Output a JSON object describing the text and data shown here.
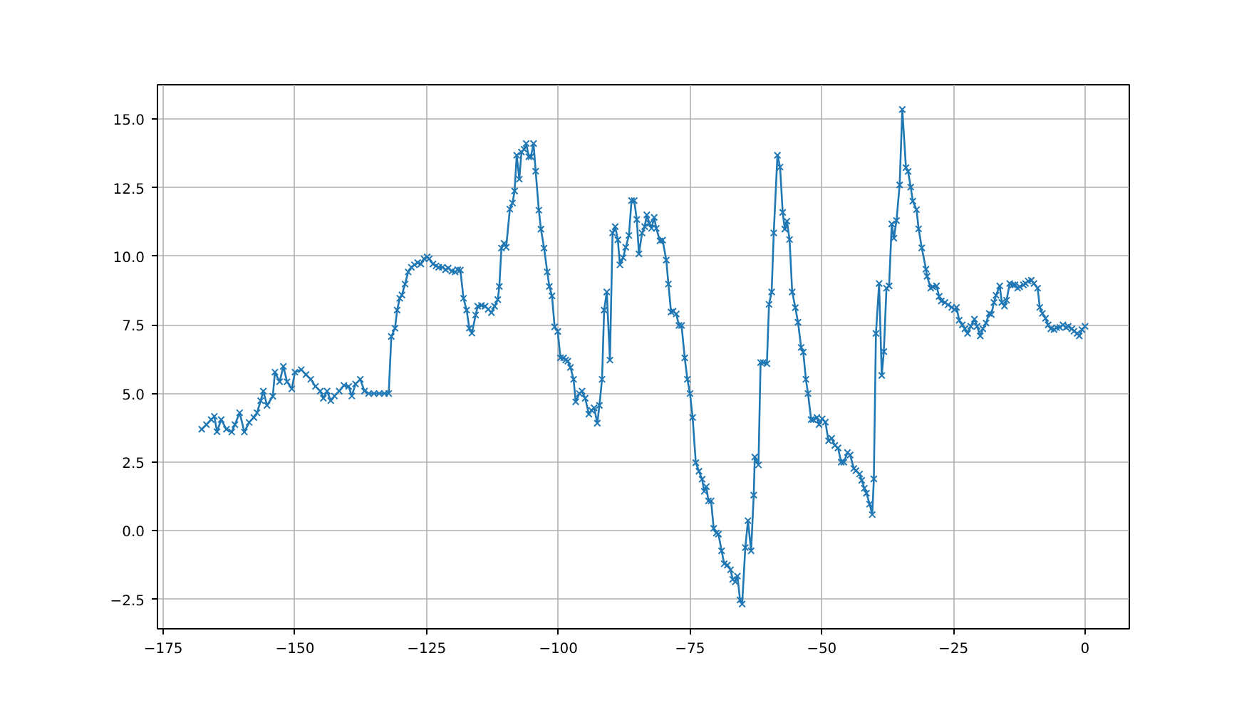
{
  "chart_data": {
    "type": "line",
    "color": "#1f77b4",
    "marker": "cross",
    "grid": true,
    "xlim": [
      -176.1,
      8.4
    ],
    "ylim": [
      -3.57,
      16.25
    ],
    "xticks": [
      {
        "value": -175,
        "label": "−175"
      },
      {
        "value": -150,
        "label": "−150"
      },
      {
        "value": -125,
        "label": "−125"
      },
      {
        "value": -100,
        "label": "−100"
      },
      {
        "value": -75,
        "label": "−75"
      },
      {
        "value": -50,
        "label": "−50"
      },
      {
        "value": -25,
        "label": "−25"
      },
      0
    ],
    "yticks": [
      {
        "value": -2.5,
        "label": "−2.5"
      },
      {
        "value": 0,
        "label": "0.0"
      },
      2.5,
      {
        "value": 5,
        "label": "5.0"
      },
      7.5,
      {
        "value": 10,
        "label": "10.0"
      },
      12.5,
      {
        "value": 15,
        "label": "15.0"
      }
    ],
    "x": [
      -167.7,
      -166.8,
      -165.9,
      -165.3,
      -164.8,
      -164.0,
      -163.0,
      -162.0,
      -161.4,
      -160.5,
      -159.6,
      -158.7,
      -157.8,
      -157.2,
      -156.5,
      -156.0,
      -155.3,
      -154.2,
      -153.8,
      -152.9,
      -152.2,
      -151.5,
      -150.6,
      -150.0,
      -148.8,
      -147.9,
      -147.0,
      -146.1,
      -145.2,
      -144.6,
      -143.9,
      -143.2,
      -142.5,
      -141.6,
      -140.7,
      -139.8,
      -139.2,
      -138.5,
      -137.6,
      -136.8,
      -136.0,
      -135.0,
      -134.0,
      -133.0,
      -132.2,
      -131.7,
      -131.0,
      -130.6,
      -130.1,
      -129.7,
      -129.1,
      -128.5,
      -127.9,
      -127.3,
      -126.7,
      -126.1,
      -125.5,
      -124.9,
      -124.5,
      -123.8,
      -123.2,
      -122.7,
      -122.0,
      -121.4,
      -120.9,
      -120.2,
      -119.6,
      -119.1,
      -118.6,
      -118.0,
      -117.4,
      -116.9,
      -116.4,
      -115.7,
      -115.3,
      -114.6,
      -113.9,
      -113.3,
      -112.7,
      -112.1,
      -111.5,
      -111.2,
      -110.8,
      -110.3,
      -109.9,
      -109.2,
      -108.7,
      -108.3,
      -107.9,
      -107.4,
      -107.0,
      -106.5,
      -106.1,
      -105.6,
      -105.2,
      -104.7,
      -104.3,
      -103.7,
      -103.3,
      -102.7,
      -102.1,
      -101.7,
      -101.2,
      -100.7,
      -100.1,
      -99.6,
      -99.0,
      -98.6,
      -98.2,
      -97.7,
      -97.1,
      -96.7,
      -96.0,
      -95.5,
      -94.9,
      -94.2,
      -93.7,
      -93.2,
      -92.6,
      -92.2,
      -91.7,
      -91.3,
      -90.8,
      -90.2,
      -89.7,
      -89.2,
      -88.7,
      -88.3,
      -87.7,
      -87.2,
      -86.6,
      -86.1,
      -85.6,
      -85.1,
      -84.7,
      -84.1,
      -83.6,
      -83.2,
      -82.7,
      -82.3,
      -81.8,
      -81.4,
      -80.7,
      -80.2,
      -79.5,
      -79.1,
      -78.6,
      -78.2,
      -77.6,
      -77.1,
      -76.6,
      -76.0,
      -75.5,
      -75.0,
      -74.5,
      -73.9,
      -73.3,
      -72.7,
      -72.3,
      -71.9,
      -71.5,
      -71.0,
      -70.5,
      -70.0,
      -69.6,
      -69.0,
      -68.5,
      -67.9,
      -67.3,
      -66.9,
      -66.4,
      -66.0,
      -65.5,
      -65.1,
      -64.5,
      -64.0,
      -63.4,
      -62.9,
      -62.7,
      -62.0,
      -61.6,
      -61.1,
      -60.4,
      -60.0,
      -59.5,
      -59.1,
      -58.4,
      -57.9,
      -57.4,
      -57.0,
      -56.6,
      -56.1,
      -55.6,
      -55.0,
      -54.5,
      -53.9,
      -53.5,
      -53.0,
      -52.6,
      -52.0,
      -51.6,
      -50.9,
      -50.5,
      -49.9,
      -49.3,
      -48.7,
      -48.1,
      -47.5,
      -46.9,
      -46.3,
      -45.8,
      -45.1,
      -44.6,
      -43.9,
      -43.5,
      -42.8,
      -42.4,
      -41.9,
      -41.5,
      -40.9,
      -40.4,
      -40.1,
      -39.7,
      -39.1,
      -38.6,
      -38.2,
      -37.7,
      -37.2,
      -36.7,
      -36.3,
      -35.8,
      -35.2,
      -34.7,
      -34.0,
      -33.6,
      -33.1,
      -32.7,
      -32.0,
      -31.6,
      -31.0,
      -30.2,
      -30.0,
      -29.3,
      -28.9,
      -28.2,
      -27.7,
      -27.3,
      -26.6,
      -26.0,
      -25.3,
      -24.8,
      -24.4,
      -23.9,
      -23.3,
      -22.8,
      -22.3,
      -21.7,
      -21.0,
      -20.5,
      -19.9,
      -19.4,
      -18.8,
      -18.2,
      -17.8,
      -17.3,
      -16.9,
      -16.2,
      -15.8,
      -15.3,
      -14.9,
      -14.3,
      -13.7,
      -13.3,
      -12.8,
      -12.4,
      -11.7,
      -11.3,
      -10.8,
      -10.2,
      -9.7,
      -9.0,
      -8.6,
      -8.1,
      -7.5,
      -7.0,
      -6.5,
      -5.9,
      -5.4,
      -4.8,
      -4.2,
      -3.6,
      -3.2,
      -2.5,
      -2.1,
      -1.5,
      -1.1,
      -0.6,
      0.0
    ],
    "values": [
      3.7,
      3.87,
      4.05,
      4.17,
      3.61,
      4.05,
      3.7,
      3.6,
      3.87,
      4.3,
      3.6,
      3.95,
      4.13,
      4.3,
      4.74,
      5.09,
      4.57,
      4.9,
      5.78,
      5.43,
      5.99,
      5.43,
      5.17,
      5.78,
      5.87,
      5.69,
      5.52,
      5.26,
      5.09,
      4.83,
      5.09,
      4.74,
      4.91,
      5.09,
      5.3,
      5.26,
      4.91,
      5.35,
      5.52,
      5.09,
      5.0,
      5.0,
      5.0,
      5.0,
      5.0,
      7.08,
      7.38,
      8.04,
      8.47,
      8.59,
      8.99,
      9.43,
      9.6,
      9.69,
      9.77,
      9.72,
      9.91,
      9.98,
      9.91,
      9.72,
      9.65,
      9.6,
      9.6,
      9.51,
      9.57,
      9.46,
      9.43,
      9.51,
      9.5,
      8.47,
      8.04,
      7.38,
      7.2,
      7.86,
      8.18,
      8.21,
      8.18,
      8.07,
      7.95,
      8.18,
      8.42,
      8.9,
      10.3,
      10.47,
      10.33,
      11.72,
      11.94,
      12.38,
      13.68,
      12.81,
      13.8,
      13.9,
      14.11,
      13.63,
      13.63,
      14.11,
      13.1,
      11.68,
      10.99,
      10.3,
      9.43,
      8.9,
      8.56,
      7.43,
      7.26,
      6.3,
      6.3,
      6.22,
      6.18,
      5.95,
      5.52,
      4.7,
      5.0,
      5.09,
      4.83,
      4.25,
      4.39,
      4.48,
      3.92,
      4.57,
      5.52,
      8.04,
      8.7,
      6.22,
      10.85,
      11.08,
      10.6,
      9.69,
      9.95,
      10.33,
      10.76,
      12.03,
      12.03,
      11.34,
      10.09,
      10.85,
      11.08,
      11.51,
      11.2,
      11.02,
      11.42,
      11.02,
      10.56,
      10.59,
      9.86,
      8.99,
      7.97,
      8.0,
      7.9,
      7.48,
      7.48,
      6.3,
      5.52,
      5.0,
      4.13,
      2.48,
      2.17,
      1.88,
      1.44,
      1.61,
      1.09,
      1.09,
      0.09,
      -0.08,
      -0.12,
      -0.73,
      -1.2,
      -1.25,
      -1.42,
      -1.77,
      -1.86,
      -1.65,
      -2.52,
      -2.67,
      -0.61,
      0.37,
      -0.73,
      1.3,
      2.69,
      2.4,
      6.13,
      6.13,
      6.09,
      8.25,
      8.7,
      10.85,
      13.68,
      13.25,
      11.6,
      10.99,
      11.28,
      10.61,
      8.7,
      8.13,
      7.6,
      6.68,
      6.51,
      5.52,
      5.0,
      4.05,
      4.05,
      4.13,
      3.87,
      4.08,
      3.96,
      3.28,
      3.37,
      3.11,
      3.02,
      2.5,
      2.5,
      2.85,
      2.76,
      2.27,
      2.19,
      2.07,
      1.84,
      1.55,
      1.37,
      0.97,
      0.59,
      1.89,
      7.19,
      9.01,
      5.66,
      6.53,
      8.84,
      8.92,
      11.18,
      10.66,
      11.3,
      12.6,
      15.35,
      13.23,
      13.09,
      12.52,
      12.01,
      11.7,
      11.0,
      10.31,
      9.53,
      9.27,
      8.84,
      8.89,
      8.92,
      8.54,
      8.37,
      8.32,
      8.23,
      8.14,
      8.06,
      8.14,
      7.67,
      7.5,
      7.36,
      7.19,
      7.45,
      7.71,
      7.45,
      7.1,
      7.36,
      7.57,
      7.92,
      7.88,
      8.32,
      8.58,
      8.92,
      8.32,
      8.19,
      8.4,
      9.01,
      8.96,
      8.96,
      8.84,
      8.89,
      8.96,
      9.01,
      9.1,
      9.13,
      9.01,
      8.84,
      8.14,
      7.92,
      7.74,
      7.5,
      7.36,
      7.33,
      7.4,
      7.41,
      7.5,
      7.41,
      7.45,
      7.36,
      7.27,
      7.19,
      7.1,
      7.33,
      7.45
    ]
  }
}
